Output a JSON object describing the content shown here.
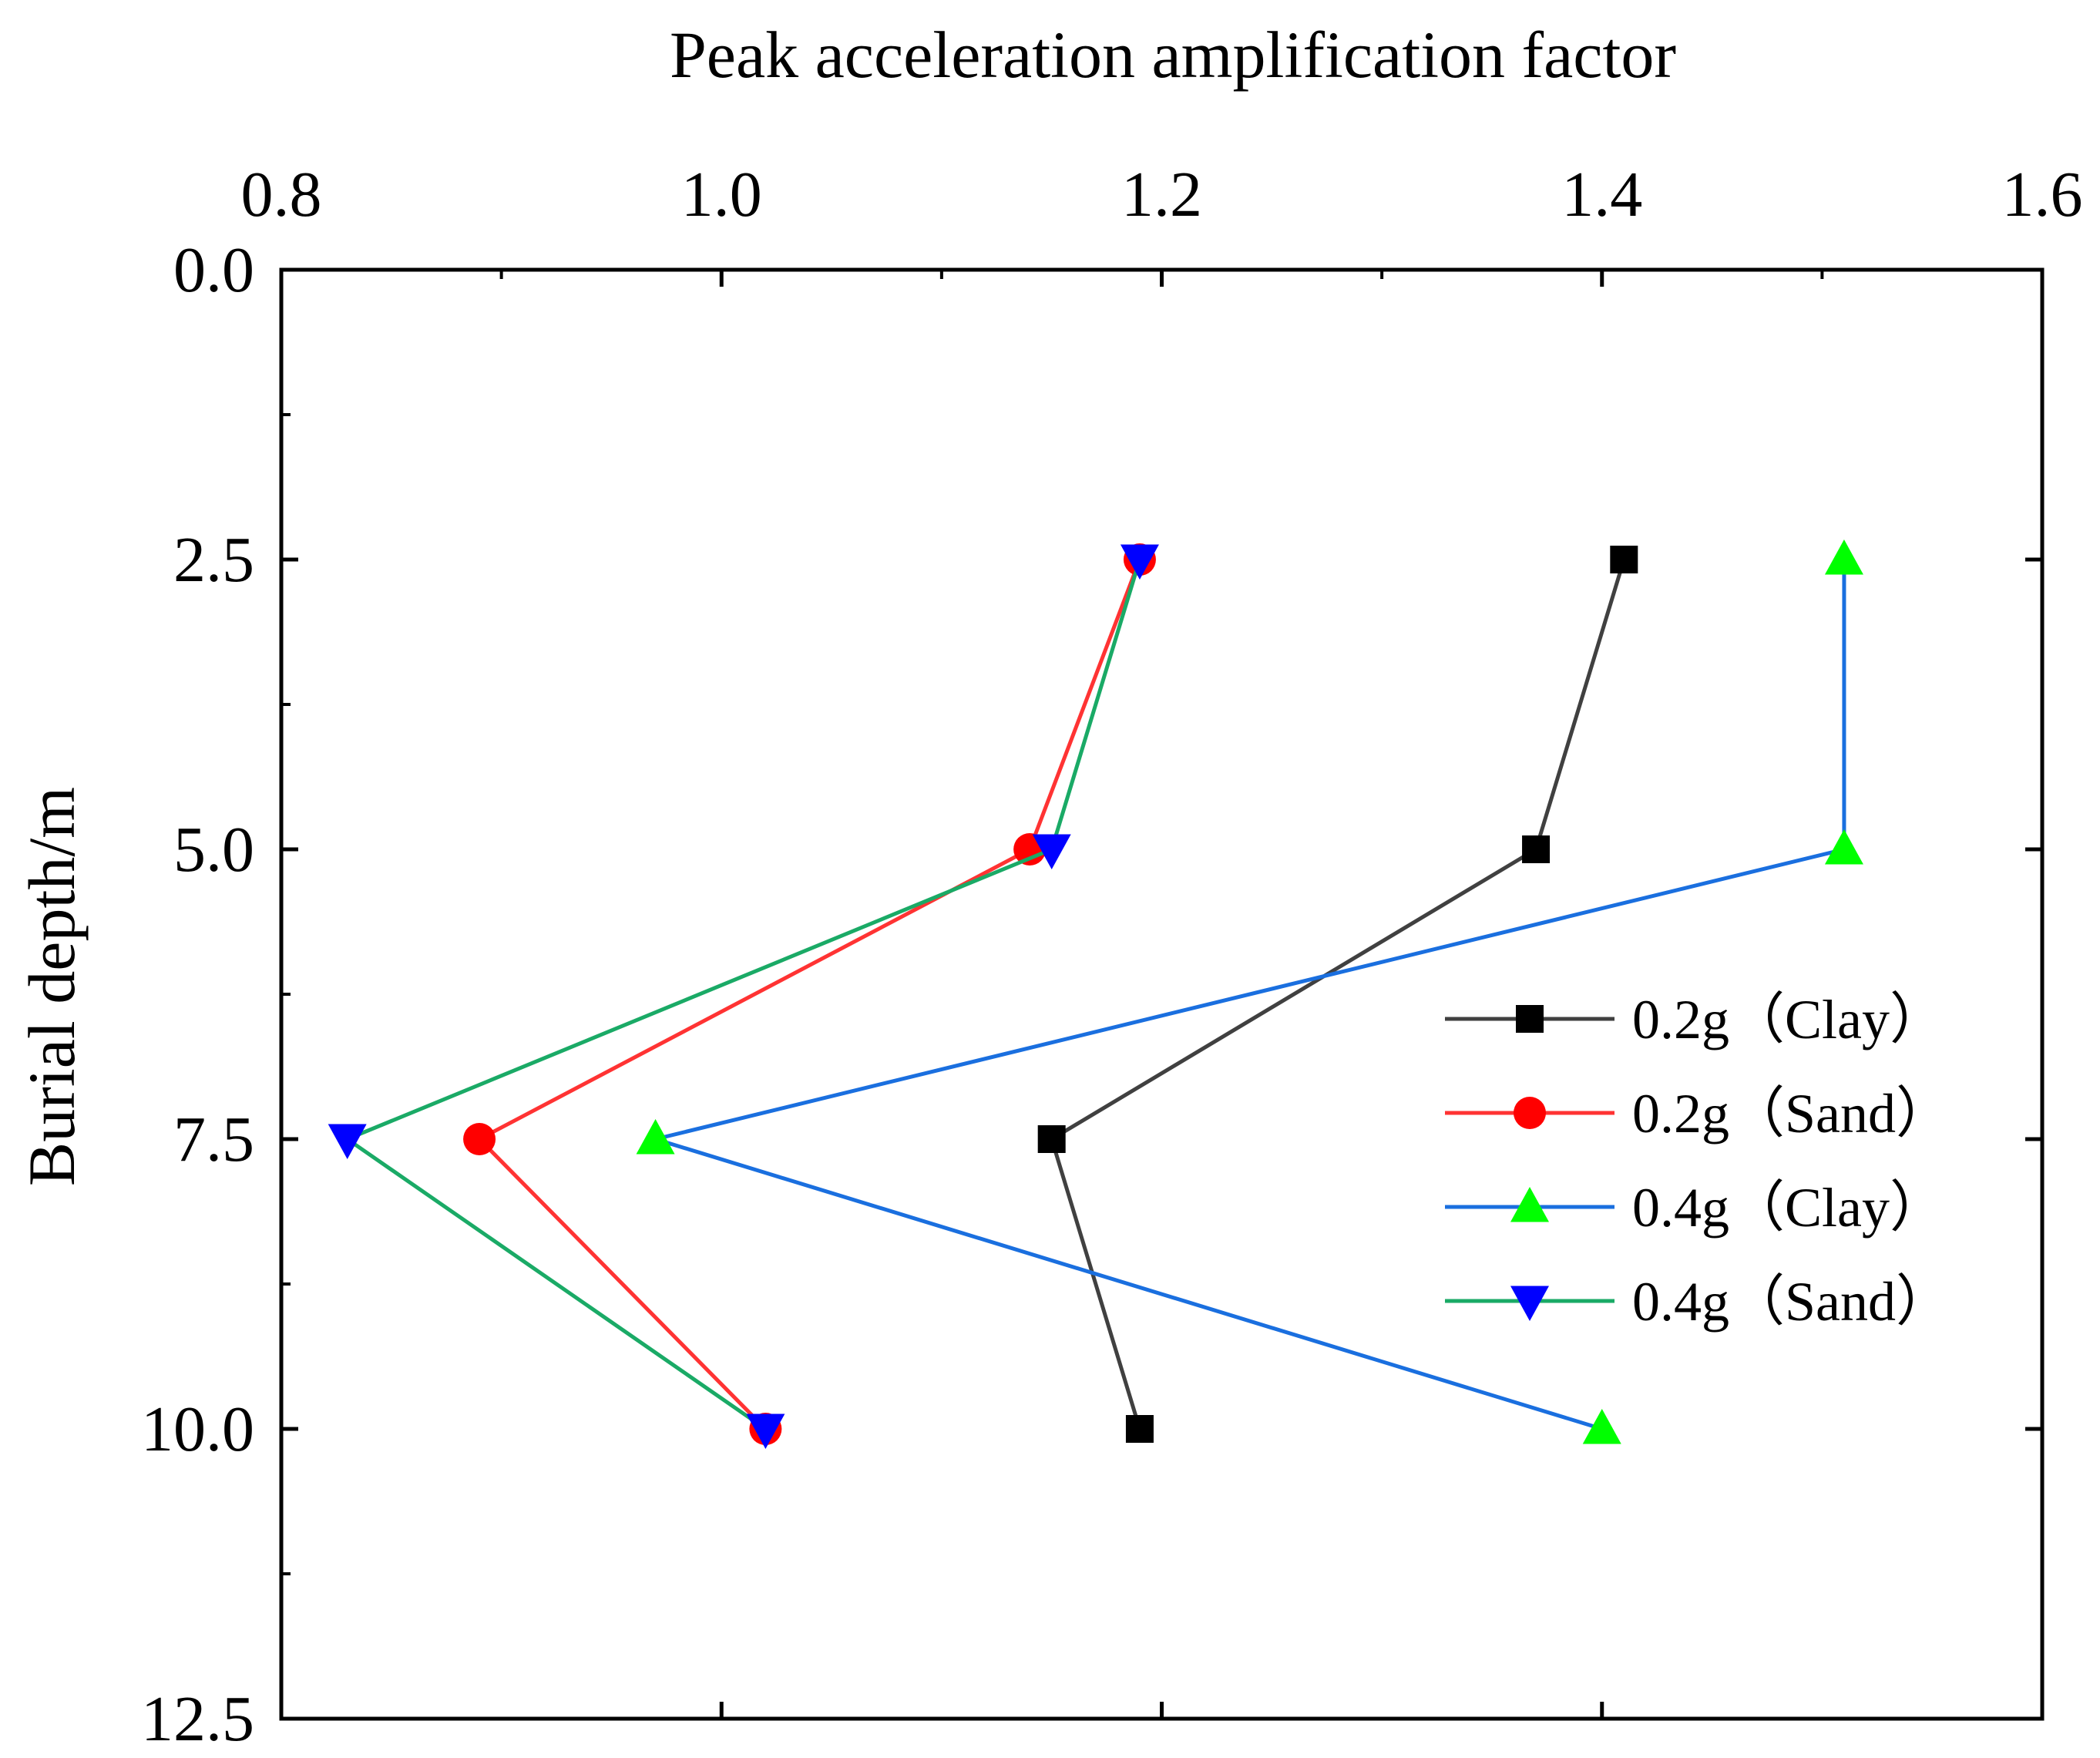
{
  "chart_data": {
    "type": "line",
    "title": "",
    "xlabel": "Peak acceleration amplification factor",
    "ylabel": "Burial depth/m",
    "xlim": [
      0.8,
      1.6
    ],
    "ylim": [
      0.0,
      12.5
    ],
    "y_inverted": true,
    "x_axis_position": "top",
    "xticks": [
      0.8,
      1.0,
      1.2,
      1.4,
      1.6
    ],
    "xtick_labels": [
      "0.8",
      "1.0",
      "1.2",
      "1.4",
      "1.6"
    ],
    "yticks": [
      0.0,
      2.5,
      5.0,
      7.5,
      10.0,
      12.5
    ],
    "ytick_labels": [
      "0.0",
      "2.5",
      "5.0",
      "7.5",
      "10.0",
      "12.5"
    ],
    "grid": false,
    "legend_position": "right",
    "series": [
      {
        "name": "0.2g（Clay）",
        "line_color": "#404040",
        "marker": "square",
        "marker_color": "#000000",
        "x": [
          1.41,
          1.37,
          1.15,
          1.19
        ],
        "y": [
          2.5,
          5.0,
          7.5,
          10.0
        ]
      },
      {
        "name": "0.2g（Sand）",
        "line_color": "#ff3333",
        "marker": "circle",
        "marker_color": "#ff0000",
        "x": [
          1.19,
          1.14,
          0.89,
          1.02
        ],
        "y": [
          2.5,
          5.0,
          7.5,
          10.0
        ]
      },
      {
        "name": "0.4g（Clay）",
        "line_color": "#1a6fdf",
        "marker": "triangle-up",
        "marker_color": "#00ff00",
        "x": [
          1.51,
          1.51,
          0.97,
          1.4
        ],
        "y": [
          2.5,
          5.0,
          7.5,
          10.0
        ]
      },
      {
        "name": "0.4g（Sand）",
        "line_color": "#1aaa66",
        "marker": "triangle-down",
        "marker_color": "#0000ff",
        "x": [
          1.19,
          1.15,
          0.83,
          1.02
        ],
        "y": [
          2.5,
          5.0,
          7.5,
          10.0
        ]
      }
    ]
  }
}
